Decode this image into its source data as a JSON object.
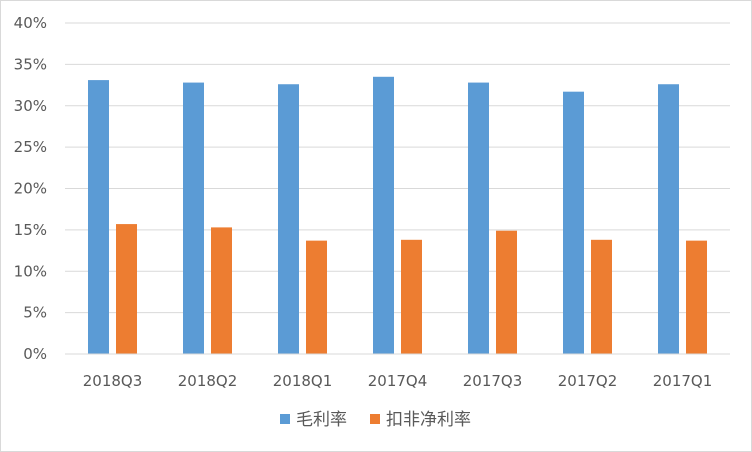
{
  "chart_data": {
    "type": "bar",
    "categories": [
      "2018Q3",
      "2018Q2",
      "2018Q1",
      "2017Q4",
      "2017Q3",
      "2017Q2",
      "2017Q1"
    ],
    "series": [
      {
        "name": "毛利率",
        "values": [
          33.1,
          32.8,
          32.6,
          33.5,
          32.8,
          31.7,
          32.6
        ],
        "color": "#5b9bd5"
      },
      {
        "name": "扣非净利率",
        "values": [
          15.7,
          15.3,
          13.7,
          13.8,
          14.9,
          13.8,
          13.7
        ],
        "color": "#ed7d31"
      }
    ],
    "ylim": [
      0,
      40
    ],
    "yticks": [
      0,
      5,
      10,
      15,
      20,
      25,
      30,
      35,
      40
    ],
    "ytick_suffix": "%",
    "grid": true,
    "legend": "bottom-center",
    "title": "",
    "xlabel": "",
    "ylabel": ""
  }
}
